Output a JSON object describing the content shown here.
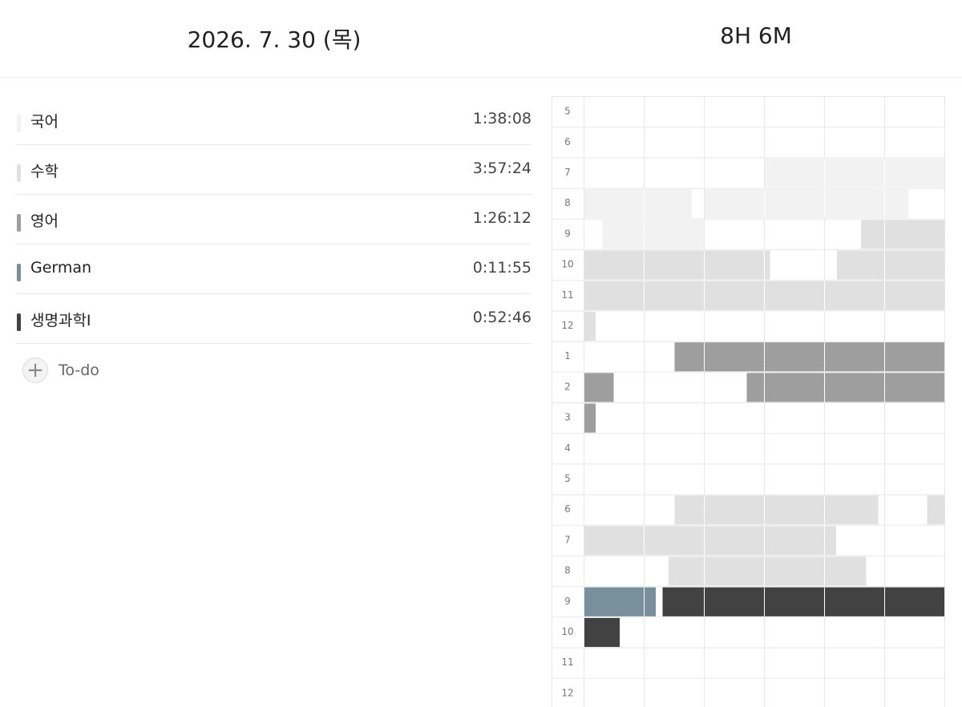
{
  "header": {
    "date": "2026. 7. 30 (목)",
    "total": "8H 6M"
  },
  "subjects": [
    {
      "name": "국어",
      "time": "1:38:08",
      "color": "#f2f2f2"
    },
    {
      "name": "수학",
      "time": "3:57:24",
      "color": "#e0e0e0"
    },
    {
      "name": "영어",
      "time": "1:26:12",
      "color": "#9e9e9e"
    },
    {
      "name": "German",
      "time": "0:11:55",
      "color": "#78909c"
    },
    {
      "name": "생명과학I",
      "time": "0:52:46",
      "color": "#424242"
    }
  ],
  "todo": "To-do",
  "timeline": {
    "hours": [
      5,
      6,
      7,
      8,
      9,
      10,
      11,
      12,
      1,
      2,
      3,
      4,
      5,
      6,
      7,
      8,
      9,
      10,
      11,
      12
    ],
    "sessions": [
      {
        "subject": 0,
        "start": 150,
        "end": 198
      },
      {
        "subject": 0,
        "start": 200,
        "end": 234
      },
      {
        "subject": 0,
        "start": 243,
        "end": 260
      },
      {
        "subject": 1,
        "start": 286,
        "end": 331
      },
      {
        "subject": 1,
        "start": 342,
        "end": 422
      },
      {
        "subject": 2,
        "start": 495,
        "end": 545
      },
      {
        "subject": 2,
        "start": 567,
        "end": 602
      },
      {
        "subject": 1,
        "start": 795,
        "end": 829
      },
      {
        "subject": 1,
        "start": 837,
        "end": 882
      },
      {
        "subject": 1,
        "start": 914,
        "end": 947
      },
      {
        "subject": 3,
        "start": 960,
        "end": 972
      },
      {
        "subject": 4,
        "start": 973,
        "end": 1026
      }
    ]
  }
}
